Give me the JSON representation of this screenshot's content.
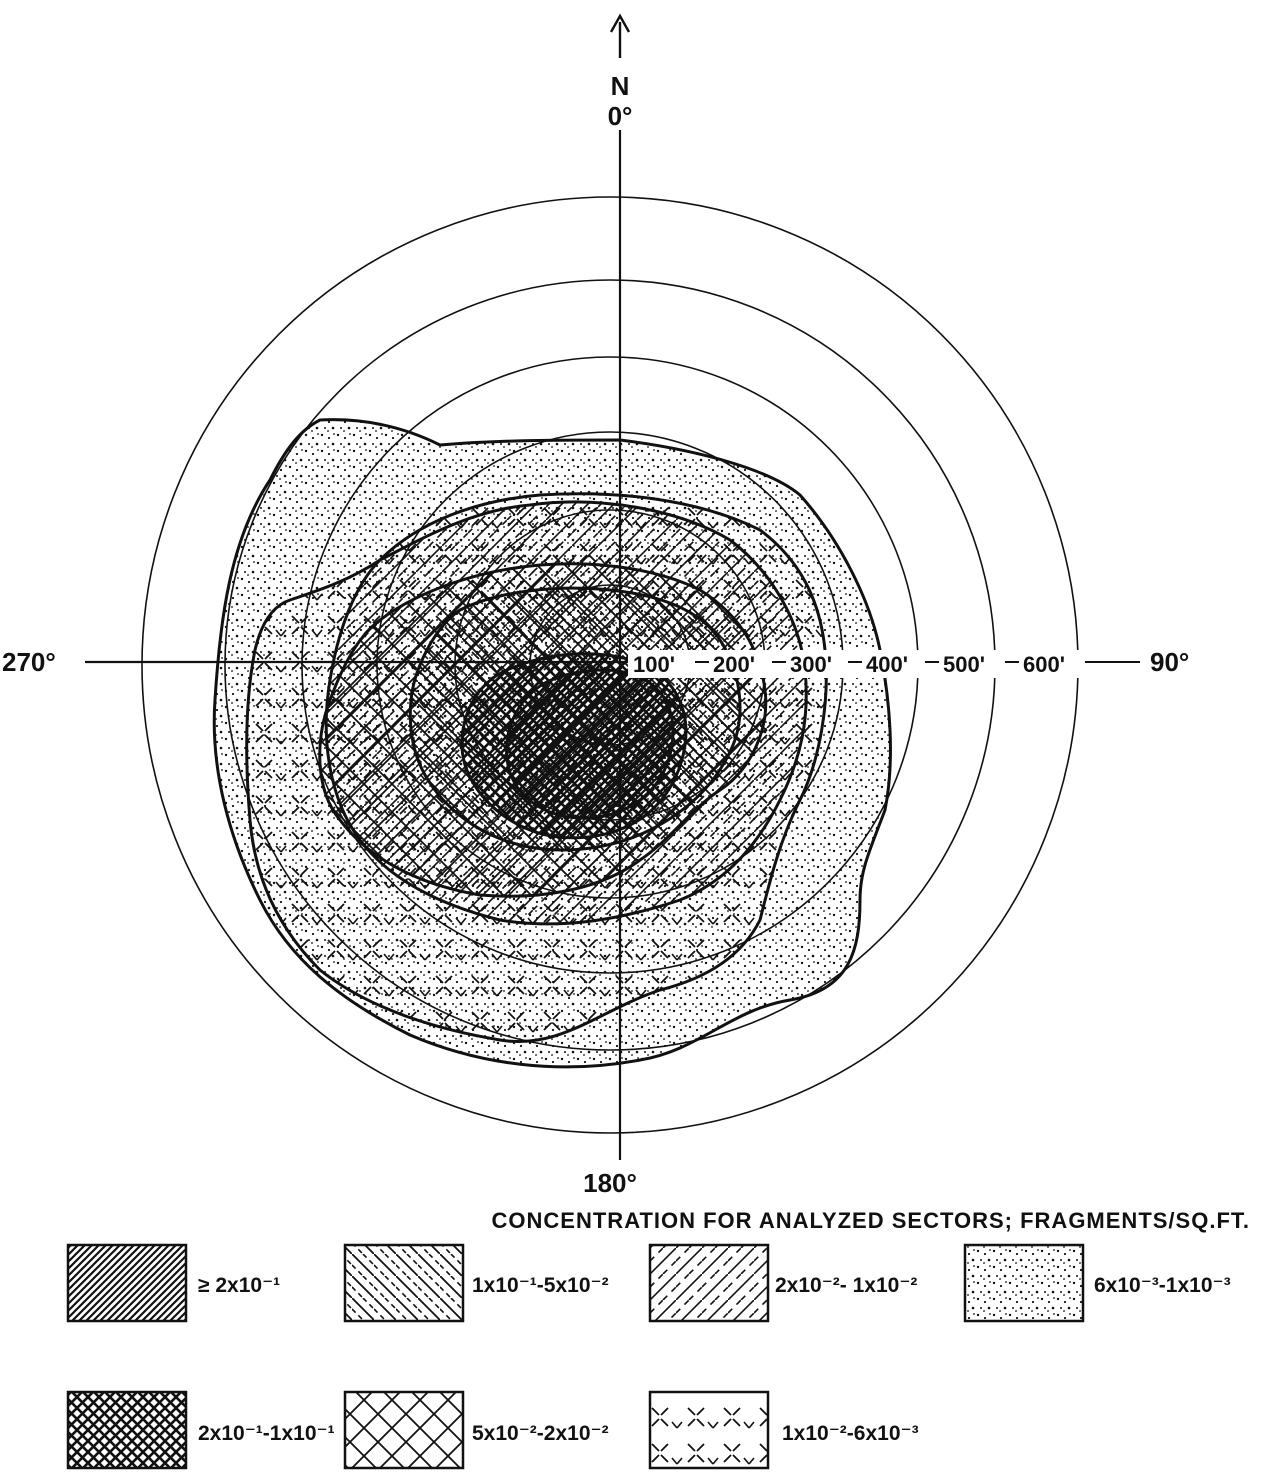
{
  "north_letter": "N",
  "bearings": {
    "north": "0°",
    "east": "90°",
    "south": "180°",
    "west": "270°"
  },
  "distances": [
    "100'",
    "200'",
    "300'",
    "400'",
    "500'",
    "600'"
  ],
  "caption": "CONCENTRATION FOR ANALYZED SECTORS; FRAGMENTS/SQ.FT.",
  "legend": [
    {
      "label": "≥ 2x10⁻¹",
      "pattern": "dense-diagonal"
    },
    {
      "label": "1x10⁻¹-5x10⁻²",
      "pattern": "diagonal-dashed"
    },
    {
      "label": "2x10⁻²- 1x10⁻²",
      "pattern": "diagonal-sparse-dashed"
    },
    {
      "label": "6x10⁻³-1x10⁻³",
      "pattern": "dots"
    },
    {
      "label": "2x10⁻¹-1x10⁻¹",
      "pattern": "dense-crosshatch"
    },
    {
      "label": "5x10⁻²-2x10⁻²",
      "pattern": "crosshatch"
    },
    {
      "label": "1x10⁻²-6x10⁻³",
      "pattern": "broken-crosses"
    }
  ],
  "colors": {
    "ink": "#111111",
    "paper": "#ffffff"
  }
}
